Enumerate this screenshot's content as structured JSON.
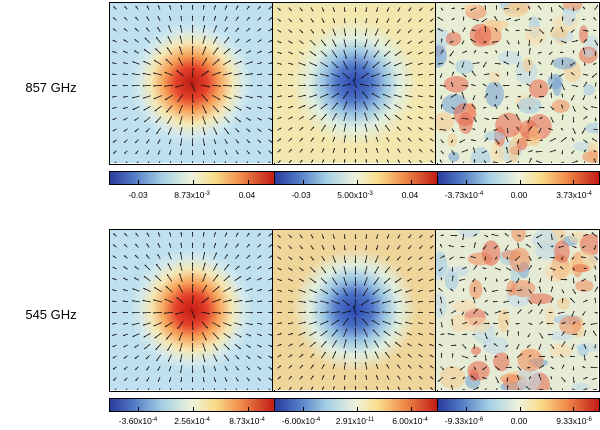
{
  "rows": [
    {
      "label": "857 GHz",
      "panels": [
        {
          "kind": "peak",
          "background": "#bfe0ef",
          "center": "#b81a12"
        },
        {
          "kind": "dip",
          "background": "#f3e7b0",
          "center": "#2c48b0"
        },
        {
          "kind": "noise",
          "background": "#e8eed4"
        }
      ],
      "colorbars": [
        {
          "ticks": [
            "-0.03",
            "8.73x10",
            "0.04"
          ],
          "exponents": [
            "",
            "-3",
            ""
          ]
        },
        {
          "ticks": [
            "-0.03",
            "5.00x10",
            "0.04"
          ],
          "exponents": [
            "",
            "-3",
            ""
          ]
        },
        {
          "ticks": [
            "-3.73x10",
            "0.00",
            "3.73x10"
          ],
          "exponents": [
            "-4",
            "",
            "-4"
          ]
        }
      ]
    },
    {
      "label": "545 GHz",
      "panels": [
        {
          "kind": "peak",
          "background": "#bfe0ef",
          "center": "#c21a14"
        },
        {
          "kind": "dip",
          "background": "#f0d59a",
          "center": "#2b47b2"
        },
        {
          "kind": "noise",
          "background": "#e6ebd5"
        }
      ],
      "colorbars": [
        {
          "ticks": [
            "-3.60x10",
            "2.56x10",
            "8.73x10"
          ],
          "exponents": [
            "-4",
            "-4",
            "-4"
          ]
        },
        {
          "ticks": [
            "-6.00x10",
            "2.91x10",
            "6.00x10"
          ],
          "exponents": [
            "-4",
            "-11",
            "-4"
          ]
        },
        {
          "ticks": [
            "-9.33x10",
            "0.00",
            "9.33x10"
          ],
          "exponents": [
            "-6",
            "",
            "-6"
          ]
        }
      ]
    }
  ]
}
